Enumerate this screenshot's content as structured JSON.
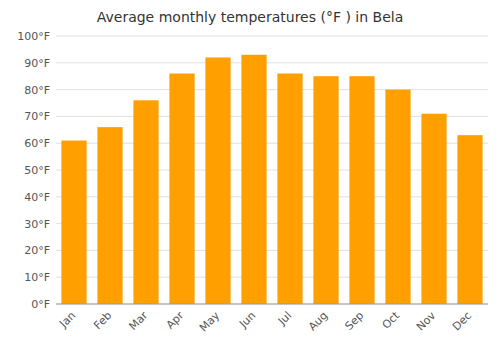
{
  "chart_data": {
    "type": "bar",
    "title": "Average monthly temperatures (°F ) in Bela",
    "categories": [
      "Jan",
      "Feb",
      "Mar",
      "Apr",
      "May",
      "Jun",
      "Jul",
      "Aug",
      "Sep",
      "Oct",
      "Nov",
      "Dec"
    ],
    "values": [
      61,
      66,
      76,
      86,
      92,
      93,
      86,
      85,
      85,
      80,
      71,
      63
    ],
    "color": "#FFA000",
    "ylim": [
      0,
      100
    ],
    "yticks": [
      {
        "value": 0,
        "label": "0°F"
      },
      {
        "value": 10,
        "label": "10°F"
      },
      {
        "value": 20,
        "label": "20°F"
      },
      {
        "value": 30,
        "label": "30°F"
      },
      {
        "value": 40,
        "label": "40°F"
      },
      {
        "value": 50,
        "label": "50°F"
      },
      {
        "value": 60,
        "label": "60°F"
      },
      {
        "value": 70,
        "label": "70°F"
      },
      {
        "value": 80,
        "label": "80°F"
      },
      {
        "value": 90,
        "label": "90°F"
      },
      {
        "value": 100,
        "label": "100°F"
      }
    ],
    "grid": true
  }
}
